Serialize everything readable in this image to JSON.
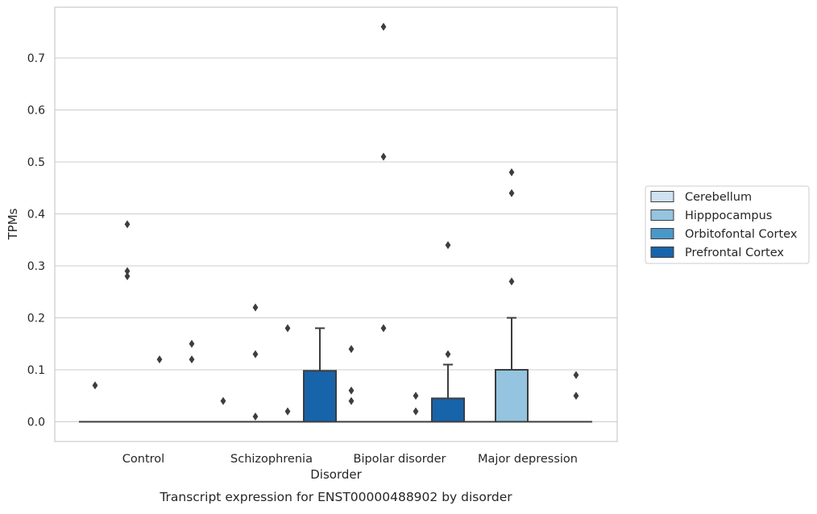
{
  "chart_data": {
    "type": "box",
    "title": "Transcript expression for ENST00000488902 by disorder",
    "xlabel": "Disorder",
    "ylabel": "TPMs",
    "categories": [
      "Control",
      "Schizophrenia",
      "Bipolar disorder",
      "Major depression"
    ],
    "ylim": [
      -0.037,
      0.8
    ],
    "yticks": [
      0.0,
      0.1,
      0.2,
      0.3,
      0.4,
      0.5,
      0.6,
      0.7
    ],
    "ytick_labels": [
      "0.0",
      "0.1",
      "0.2",
      "0.3",
      "0.4",
      "0.5",
      "0.6",
      "0.7"
    ],
    "grid": "y",
    "legend_position": "right",
    "series": [
      {
        "name": "Cerebellum",
        "color": "#d0e1f2",
        "boxes": [
          {
            "category": "Control",
            "q1": 0,
            "median": 0,
            "q3": 0,
            "whisker_low": 0,
            "whisker_high": 0,
            "outliers": [
              0.07
            ]
          },
          {
            "category": "Schizophrenia",
            "q1": 0,
            "median": 0,
            "q3": 0,
            "whisker_low": 0,
            "whisker_high": 0,
            "outliers": [
              0.04
            ]
          },
          {
            "category": "Bipolar disorder",
            "q1": 0,
            "median": 0,
            "q3": 0,
            "whisker_low": 0,
            "whisker_high": 0,
            "outliers": [
              0.14,
              0.06,
              0.04
            ]
          },
          {
            "category": "Major depression",
            "q1": 0,
            "median": 0,
            "q3": 0,
            "whisker_low": 0,
            "whisker_high": 0,
            "outliers": []
          }
        ]
      },
      {
        "name": "Hipppocampus",
        "color": "#94c4df",
        "boxes": [
          {
            "category": "Control",
            "q1": 0,
            "median": 0,
            "q3": 0,
            "whisker_low": 0,
            "whisker_high": 0,
            "outliers": [
              0.38,
              0.29,
              0.28
            ]
          },
          {
            "category": "Schizophrenia",
            "q1": 0,
            "median": 0,
            "q3": 0,
            "whisker_low": 0,
            "whisker_high": 0,
            "outliers": [
              0.22,
              0.13,
              0.01
            ]
          },
          {
            "category": "Bipolar disorder",
            "q1": 0,
            "median": 0,
            "q3": 0,
            "whisker_low": 0,
            "whisker_high": 0,
            "outliers": [
              0.76,
              0.51,
              0.18
            ]
          },
          {
            "category": "Major depression",
            "q1": 0,
            "median": 0,
            "q3": 0.1,
            "whisker_low": 0,
            "whisker_high": 0.2,
            "outliers": [
              0.48,
              0.44,
              0.27
            ]
          }
        ]
      },
      {
        "name": "Orbitofontal Cortex",
        "color": "#4a98c9",
        "boxes": [
          {
            "category": "Control",
            "q1": 0,
            "median": 0,
            "q3": 0,
            "whisker_low": 0,
            "whisker_high": 0,
            "outliers": [
              0.12
            ]
          },
          {
            "category": "Schizophrenia",
            "q1": 0,
            "median": 0,
            "q3": 0,
            "whisker_low": 0,
            "whisker_high": 0,
            "outliers": [
              0.18,
              0.02
            ]
          },
          {
            "category": "Bipolar disorder",
            "q1": 0,
            "median": 0,
            "q3": 0,
            "whisker_low": 0,
            "whisker_high": 0,
            "outliers": [
              0.05,
              0.02
            ]
          },
          {
            "category": "Major depression",
            "q1": 0,
            "median": 0,
            "q3": 0,
            "whisker_low": 0,
            "whisker_high": 0,
            "outliers": []
          }
        ]
      },
      {
        "name": "Prefrontal Cortex",
        "color": "#1764ab",
        "boxes": [
          {
            "category": "Control",
            "q1": 0,
            "median": 0,
            "q3": 0,
            "whisker_low": 0,
            "whisker_high": 0,
            "outliers": [
              0.15,
              0.12
            ]
          },
          {
            "category": "Schizophrenia",
            "q1": 0,
            "median": 0,
            "q3": 0.098,
            "whisker_low": 0,
            "whisker_high": 0.18,
            "outliers": []
          },
          {
            "category": "Bipolar disorder",
            "q1": 0,
            "median": 0,
            "q3": 0.045,
            "whisker_low": 0,
            "whisker_high": 0.11,
            "outliers": [
              0.34,
              0.13
            ]
          },
          {
            "category": "Major depression",
            "q1": 0,
            "median": 0,
            "q3": 0,
            "whisker_low": 0,
            "whisker_high": 0,
            "outliers": [
              0.09,
              0.05
            ]
          }
        ]
      }
    ]
  }
}
